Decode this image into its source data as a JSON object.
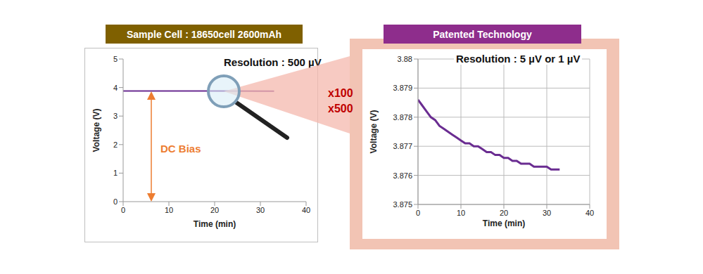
{
  "chart_data": [
    {
      "type": "line",
      "title": "Sample Cell : 18650cell 2600mAh",
      "annotations": [
        "Resolution : 500 µV",
        "DC Bias"
      ],
      "x_label": "Time (min)",
      "y_label": "Voltage (V)",
      "x": [
        0,
        10,
        20,
        33
      ],
      "series": [
        {
          "name": "Voltage",
          "color": "#6a2c91",
          "values": [
            3.8786,
            3.8772,
            3.8766,
            3.8762
          ]
        }
      ],
      "xlim": [
        0,
        40
      ],
      "xticks": [
        0,
        10,
        20,
        30,
        40
      ],
      "ylim": [
        0,
        5
      ],
      "yticks": [
        0,
        1,
        2,
        3,
        4,
        5
      ],
      "grid": false
    },
    {
      "type": "line",
      "title": "Patented Technology",
      "annotations": [
        "Resolution : 5 µV or 1 µV",
        "x100",
        "x500"
      ],
      "x_label": "Time (min)",
      "y_label": "Voltage (V)",
      "x": [
        0,
        1,
        2,
        3,
        4,
        5,
        6,
        7,
        8,
        9,
        10,
        11,
        12,
        13,
        14,
        15,
        16,
        17,
        18,
        19,
        20,
        21,
        22,
        23,
        24,
        25,
        26,
        27,
        28,
        29,
        30,
        31,
        32,
        33
      ],
      "series": [
        {
          "name": "Voltage",
          "color": "#6a2c91",
          "values": [
            3.8786,
            3.8784,
            3.8782,
            3.878,
            3.8779,
            3.8777,
            3.8776,
            3.8775,
            3.8774,
            3.8773,
            3.8772,
            3.8771,
            3.8771,
            3.877,
            3.877,
            3.8769,
            3.8768,
            3.8768,
            3.8767,
            3.8767,
            3.8766,
            3.8766,
            3.8765,
            3.8765,
            3.8764,
            3.8764,
            3.8764,
            3.8763,
            3.8763,
            3.8763,
            3.8763,
            3.8762,
            3.8762,
            3.8762
          ]
        }
      ],
      "xlim": [
        0,
        40
      ],
      "xticks": [
        0,
        10,
        20,
        30,
        40
      ],
      "ylim": [
        3.875,
        3.88
      ],
      "yticks": [
        3.875,
        3.876,
        3.877,
        3.878,
        3.879,
        3.88
      ],
      "grid": true
    }
  ]
}
